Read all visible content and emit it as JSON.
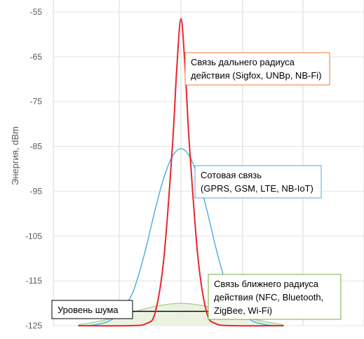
{
  "chart_data": {
    "type": "line",
    "xlabel": "",
    "ylabel": "Энергия, dBm",
    "ylim": [
      -125,
      -55
    ],
    "yticks": [
      -55,
      -65,
      -75,
      -85,
      -95,
      -105,
      -115,
      -125
    ],
    "grid": true,
    "series": [
      {
        "color": "#E8262C",
        "fill": "none",
        "x": [
          -12,
          -6,
          -4,
          -3,
          -2,
          -1,
          -0.5,
          0,
          0.5,
          1,
          2,
          3,
          4,
          6,
          12
        ],
        "y": [
          -125,
          -125,
          -124.5,
          -122,
          -110,
          -85,
          -68,
          -56.5,
          -68,
          -85,
          -110,
          -122,
          -124.5,
          -125,
          -125
        ]
      },
      {
        "color": "#45AEE0",
        "fill": "none",
        "x": [
          -12,
          -10,
          -8,
          -6,
          -5,
          -4,
          -3,
          -2,
          -1,
          0,
          1,
          2,
          3,
          4,
          5,
          6,
          8,
          10,
          12
        ],
        "y": [
          -125,
          -124.8,
          -123.5,
          -119,
          -114,
          -107,
          -99,
          -92,
          -87.2,
          -85.5,
          -87.2,
          -92,
          -99,
          -107,
          -114,
          -119,
          -123.5,
          -124.8,
          -125
        ]
      },
      {
        "color": "#A9CF8E",
        "fill": "#E9F1DF",
        "x": [
          -12,
          -9,
          -6,
          -3,
          0,
          3,
          6,
          9,
          12
        ],
        "y": [
          -124.8,
          -123.8,
          -122.2,
          -120.7,
          -120,
          -120.7,
          -122.2,
          -123.8,
          -124.8
        ]
      },
      {
        "color": "#000000",
        "fill": "none",
        "x": [
          -12,
          12
        ],
        "y": [
          -121.8,
          -121.8
        ]
      }
    ],
    "annotations": [
      {
        "lines": [
          "Связь дальнего радиуса",
          "действия (Sigfox, UNBp, NB-Fi)"
        ],
        "border": "#ED7D31"
      },
      {
        "lines": [
          "Сотовая связь",
          "(GPRS, GSM, LTE, NB-IoT)"
        ],
        "border": "#45AEE0"
      },
      {
        "lines": [
          "Связь ближнего радиуса",
          "действия (NFC, Bluetooth,",
          "ZigBee, Wi-Fi)"
        ],
        "border": "#70AD47"
      },
      {
        "lines": [
          "Уровень шума"
        ],
        "border": "#000000"
      }
    ]
  }
}
